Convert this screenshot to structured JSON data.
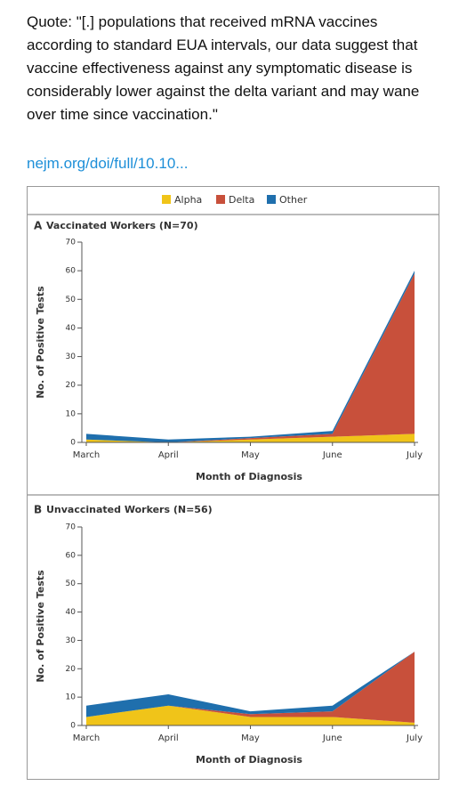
{
  "quote_lines": [
    "Quote: \"[.] populations that received mRNA vaccines",
    "according to standard EUA intervals, our data suggest that",
    "vaccine effectiveness against any symptomatic disease is",
    "considerably lower against the delta variant and may wane",
    "over time since vaccination.\""
  ],
  "link": "nejm.org/doi/full/10.10...",
  "chart_data": [
    {
      "type": "area",
      "stacked": true,
      "panel": "A",
      "title": "Vaccinated Workers (N=70)",
      "xlabel": "Month of Diagnosis",
      "ylabel": "No. of Positive Tests",
      "categories": [
        "March",
        "April",
        "May",
        "June",
        "July"
      ],
      "series": [
        {
          "name": "Alpha",
          "color": "#f0c419",
          "values": [
            1,
            0,
            1,
            2,
            3
          ]
        },
        {
          "name": "Delta",
          "color": "#c8503b",
          "values": [
            0,
            0,
            0.5,
            1,
            56
          ]
        },
        {
          "name": "Other",
          "color": "#1f6fad",
          "values": [
            2,
            1,
            0.5,
            1,
            1
          ]
        }
      ],
      "ylim": [
        0,
        70
      ],
      "yticks": [
        0,
        10,
        20,
        30,
        40,
        50,
        60,
        70
      ]
    },
    {
      "type": "area",
      "stacked": true,
      "panel": "B",
      "title": "Unvaccinated Workers (N=56)",
      "xlabel": "Month of Diagnosis",
      "ylabel": "No. of Positive Tests",
      "categories": [
        "March",
        "April",
        "May",
        "June",
        "July"
      ],
      "series": [
        {
          "color": "#f0c419",
          "values": [
            3,
            7,
            3,
            3,
            1
          ]
        },
        {
          "color": "#c8503b",
          "values": [
            0,
            0,
            1,
            2,
            25
          ]
        },
        {
          "color": "#1f6fad",
          "values": [
            4,
            4,
            1,
            2,
            0
          ]
        }
      ],
      "ylim": [
        0,
        70
      ],
      "yticks": [
        0,
        10,
        20,
        30,
        40,
        50,
        60,
        70
      ]
    }
  ]
}
